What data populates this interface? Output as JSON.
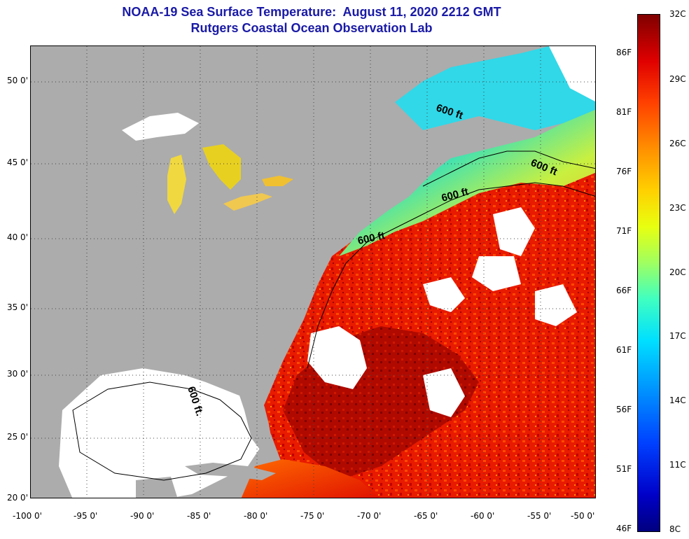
{
  "title": {
    "line1": "NOAA-19 Sea Surface Temperature:  August 11, 2020 2212 GMT",
    "line2": "Rutgers Coastal Ocean Observation Lab"
  },
  "axes": {
    "latitude_labels": [
      "50 0'",
      "45 0'",
      "40 0'",
      "35 0'",
      "30 0'",
      "25 0'",
      "20 0'"
    ],
    "longitude_labels": [
      "-100 0'",
      "-95 0'",
      "-90 0'",
      "-85 0'",
      "-80 0'",
      "-75 0'",
      "-70 0'",
      "-65 0'",
      "-60 0'",
      "-55 0'",
      "-50 0'"
    ]
  },
  "contour_labels": [
    "600 ft",
    "600 ft",
    "600 ft",
    "600 ft",
    "600 ft."
  ],
  "colorbar": {
    "fahrenheit_labels": [
      "86F",
      "81F",
      "76F",
      "71F",
      "66F",
      "61F",
      "56F",
      "51F",
      "46F"
    ],
    "celsius_labels": [
      "32C",
      "29C",
      "26C",
      "23C",
      "20C",
      "17C",
      "14C",
      "11C",
      "8C"
    ]
  },
  "colors": {
    "land": "#acacac",
    "no_data": "#ffffff",
    "title": "#1a1aa6"
  }
}
